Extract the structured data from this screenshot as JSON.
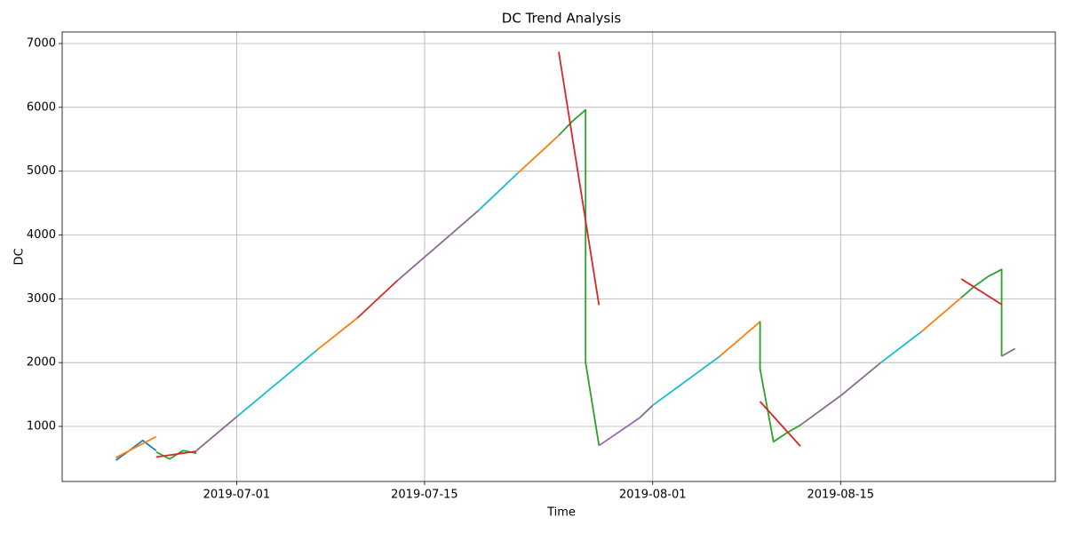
{
  "chart_data": {
    "type": "line",
    "title": "DC Trend Analysis",
    "x_label": "Time",
    "y_label": "DC",
    "xlim": [
      "2019-06-18",
      "2019-08-31"
    ],
    "xticks": [
      "2019-07-01",
      "2019-07-15",
      "2019-08-01",
      "2019-08-15"
    ],
    "ylim": [
      137,
      7181
    ],
    "yticks": [
      1000,
      2000,
      3000,
      4000,
      5000,
      6000,
      7000
    ],
    "grid": true,
    "series": [
      {
        "color": "#1f77b4",
        "x": [
          "2019-06-22",
          "2019-06-23",
          "2019-06-24",
          "2019-06-25"
        ],
        "values": [
          470,
          620,
          780,
          620
        ]
      },
      {
        "color": "#ff7f0e",
        "x": [
          "2019-06-22",
          "2019-06-25"
        ],
        "values": [
          510,
          840
        ]
      },
      {
        "color": "#2ca02c",
        "x": [
          "2019-06-25",
          "2019-06-26",
          "2019-06-27",
          "2019-06-28"
        ],
        "values": [
          600,
          490,
          620,
          580
        ]
      },
      {
        "color": "#d62728",
        "x": [
          "2019-06-25",
          "2019-06-28"
        ],
        "values": [
          520,
          610
        ]
      },
      {
        "color": "#8c6a8f",
        "x": [
          "2019-06-28",
          "2019-07-01"
        ],
        "values": [
          620,
          1150
        ]
      },
      {
        "color": "#17becf",
        "x": [
          "2019-07-01",
          "2019-07-07"
        ],
        "values": [
          1150,
          2200
        ]
      },
      {
        "color": "#ff7f0e",
        "x": [
          "2019-07-07",
          "2019-07-10"
        ],
        "values": [
          2200,
          2700
        ]
      },
      {
        "color": "#d62728",
        "x": [
          "2019-07-10",
          "2019-07-13"
        ],
        "values": [
          2700,
          3290
        ]
      },
      {
        "color": "#8c6a8f",
        "x": [
          "2019-07-13",
          "2019-07-19"
        ],
        "values": [
          3290,
          4380
        ]
      },
      {
        "color": "#17becf",
        "x": [
          "2019-07-19",
          "2019-07-22"
        ],
        "values": [
          4380,
          4980
        ]
      },
      {
        "color": "#ff7f0e",
        "x": [
          "2019-07-22",
          "2019-07-25"
        ],
        "values": [
          4980,
          5560
        ]
      },
      {
        "color": "#2ca02c",
        "x": [
          "2019-07-25",
          "2019-07-26",
          "2019-07-27",
          "2019-07-27",
          "2019-07-28"
        ],
        "values": [
          5560,
          5780,
          5960,
          2000,
          700
        ]
      },
      {
        "color": "#d62728",
        "x": [
          "2019-07-25",
          "2019-07-28"
        ],
        "values": [
          6870,
          2900
        ]
      },
      {
        "color": "#9467bd",
        "x": [
          "2019-07-28",
          "2019-07-31"
        ],
        "values": [
          700,
          1130
        ]
      },
      {
        "color": "#8c6a8f",
        "x": [
          "2019-07-31",
          "2019-08-01"
        ],
        "values": [
          1130,
          1330
        ]
      },
      {
        "color": "#17becf",
        "x": [
          "2019-08-01",
          "2019-08-06"
        ],
        "values": [
          1330,
          2100
        ]
      },
      {
        "color": "#ff7f0e",
        "x": [
          "2019-08-06",
          "2019-08-09"
        ],
        "values": [
          2100,
          2640
        ]
      },
      {
        "color": "#2ca02c",
        "x": [
          "2019-08-09",
          "2019-08-09",
          "2019-08-10",
          "2019-08-11",
          "2019-08-12"
        ],
        "values": [
          2650,
          1900,
          760,
          900,
          1020
        ]
      },
      {
        "color": "#d62728",
        "x": [
          "2019-08-09",
          "2019-08-12"
        ],
        "values": [
          1390,
          690
        ]
      },
      {
        "color": "#8c6a8f",
        "x": [
          "2019-08-12",
          "2019-08-15",
          "2019-08-18"
        ],
        "values": [
          1020,
          1480,
          2000
        ]
      },
      {
        "color": "#17becf",
        "x": [
          "2019-08-18",
          "2019-08-21"
        ],
        "values": [
          2000,
          2480
        ]
      },
      {
        "color": "#ff7f0e",
        "x": [
          "2019-08-21",
          "2019-08-24"
        ],
        "values": [
          2480,
          3020
        ]
      },
      {
        "color": "#2ca02c",
        "x": [
          "2019-08-24",
          "2019-08-25",
          "2019-08-26",
          "2019-08-27",
          "2019-08-27"
        ],
        "values": [
          3020,
          3200,
          3350,
          3460,
          2100
        ]
      },
      {
        "color": "#8c6a8f",
        "x": [
          "2019-08-27",
          "2019-08-28"
        ],
        "values": [
          2100,
          2220
        ]
      },
      {
        "color": "#d62728",
        "x": [
          "2019-08-24",
          "2019-08-27"
        ],
        "values": [
          3310,
          2910
        ]
      }
    ]
  }
}
